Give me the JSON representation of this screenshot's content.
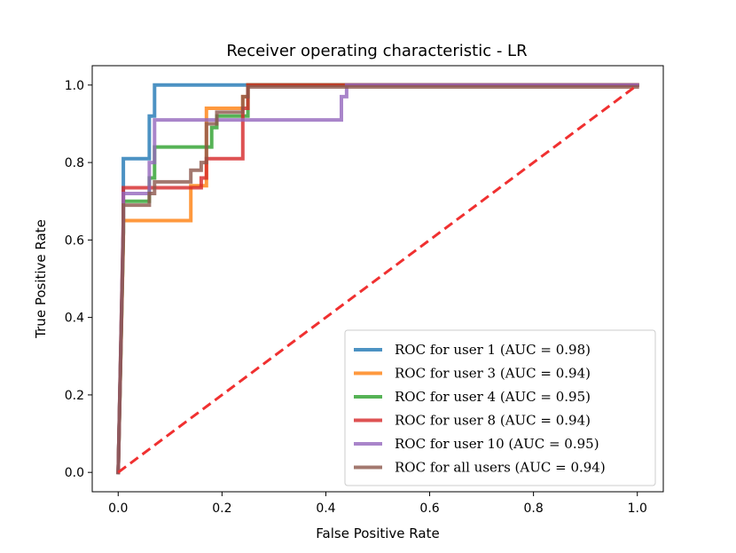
{
  "chart_data": {
    "type": "line",
    "title": "Receiver operating characteristic - LR",
    "xlabel": "False Positive Rate",
    "ylabel": "True Positive Rate",
    "xlim": [
      -0.05,
      1.05
    ],
    "ylim": [
      -0.05,
      1.05
    ],
    "xticks": [
      0.0,
      0.2,
      0.4,
      0.6,
      0.8,
      1.0
    ],
    "xtick_labels": [
      "0.0",
      "0.2",
      "0.4",
      "0.6",
      "0.8",
      "1.0"
    ],
    "yticks": [
      0.0,
      0.2,
      0.4,
      0.6,
      0.8,
      1.0
    ],
    "ytick_labels": [
      "0.0",
      "0.2",
      "0.4",
      "0.6",
      "0.8",
      "1.0"
    ],
    "grid": false,
    "legend_position": "lower right",
    "series": [
      {
        "name": "ROC for user 1 (AUC = 0.98)",
        "color": "#1f77b4",
        "x": [
          0.0,
          0.01,
          0.01,
          0.06,
          0.06,
          0.07,
          0.07,
          1.0
        ],
        "y": [
          0.0,
          0.62,
          0.81,
          0.81,
          0.92,
          0.92,
          1.0,
          1.0
        ]
      },
      {
        "name": "ROC for user 3 (AUC = 0.94)",
        "color": "#ff7f0e",
        "x": [
          0.0,
          0.01,
          0.01,
          0.14,
          0.14,
          0.17,
          0.17,
          0.24,
          0.24,
          0.25,
          0.25,
          1.0
        ],
        "y": [
          0.0,
          0.6,
          0.65,
          0.65,
          0.74,
          0.74,
          0.94,
          0.94,
          0.97,
          0.97,
          1.0,
          1.0
        ]
      },
      {
        "name": "ROC for user 4 (AUC = 0.95)",
        "color": "#2ca02c",
        "x": [
          0.0,
          0.01,
          0.01,
          0.06,
          0.06,
          0.07,
          0.07,
          0.18,
          0.18,
          0.19,
          0.19,
          0.25,
          0.25,
          1.0
        ],
        "y": [
          0.0,
          0.62,
          0.7,
          0.7,
          0.76,
          0.76,
          0.84,
          0.84,
          0.89,
          0.89,
          0.92,
          0.92,
          1.0,
          1.0
        ]
      },
      {
        "name": "ROC for user 8 (AUC = 0.94)",
        "color": "#d62728",
        "x": [
          0.0,
          0.01,
          0.01,
          0.16,
          0.16,
          0.17,
          0.17,
          0.24,
          0.24,
          0.25,
          0.25,
          1.0
        ],
        "y": [
          0.0,
          0.65,
          0.735,
          0.735,
          0.76,
          0.76,
          0.81,
          0.81,
          0.94,
          0.94,
          1.0,
          1.0
        ]
      },
      {
        "name": "ROC for user 10 (AUC = 0.95)",
        "color": "#9467bd",
        "x": [
          0.0,
          0.01,
          0.01,
          0.06,
          0.06,
          0.07,
          0.07,
          0.43,
          0.43,
          0.44,
          0.44,
          1.0
        ],
        "y": [
          0.0,
          0.65,
          0.72,
          0.72,
          0.8,
          0.8,
          0.91,
          0.91,
          0.97,
          0.97,
          1.0,
          1.0
        ]
      },
      {
        "name": "ROC for all users (AUC = 0.94)",
        "color": "#8c564b",
        "x": [
          0.0,
          0.01,
          0.01,
          0.06,
          0.06,
          0.07,
          0.07,
          0.14,
          0.14,
          0.16,
          0.16,
          0.17,
          0.17,
          0.19,
          0.19,
          0.24,
          0.24,
          0.25,
          0.25,
          1.0
        ],
        "y": [
          0.0,
          0.62,
          0.69,
          0.69,
          0.72,
          0.72,
          0.75,
          0.75,
          0.78,
          0.78,
          0.8,
          0.8,
          0.9,
          0.9,
          0.93,
          0.93,
          0.97,
          0.97,
          0.995,
          0.995
        ]
      }
    ],
    "reference_line": {
      "name": "chance diagonal",
      "color": "#f03030",
      "x": [
        0.0,
        1.0
      ],
      "y": [
        0.0,
        1.0
      ]
    }
  }
}
